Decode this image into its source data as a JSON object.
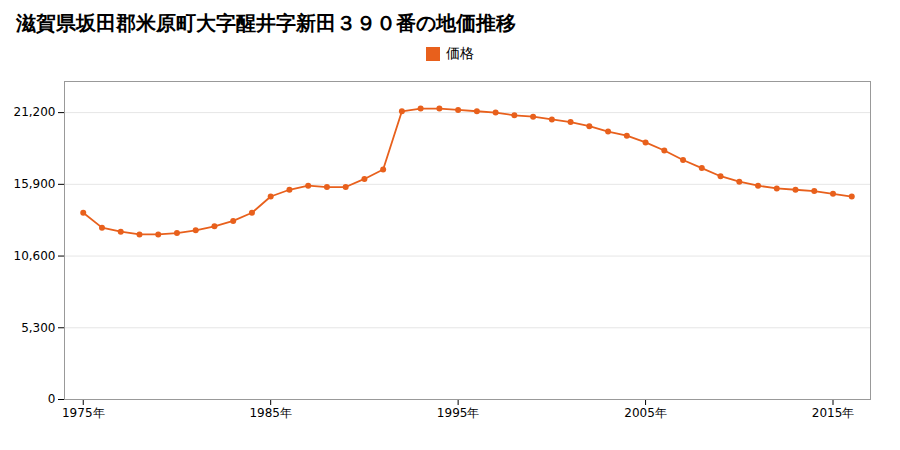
{
  "chart_data": {
    "type": "line",
    "title": "滋賀県坂田郡米原町大字醒井字新田３９０番の地価推移",
    "x": [
      1975,
      1976,
      1977,
      1978,
      1979,
      1980,
      1981,
      1982,
      1983,
      1984,
      1985,
      1986,
      1987,
      1988,
      1989,
      1990,
      1991,
      1992,
      1993,
      1994,
      1995,
      1996,
      1997,
      1998,
      1999,
      2000,
      2001,
      2002,
      2003,
      2004,
      2005,
      2006,
      2007,
      2008,
      2009,
      2010,
      2011,
      2012,
      2013,
      2014,
      2015,
      2016
    ],
    "series": [
      {
        "name": "価格",
        "color": "#e8601c",
        "marker": "circle",
        "values": [
          13800,
          12700,
          12400,
          12200,
          12200,
          12300,
          12500,
          12800,
          13200,
          13800,
          15000,
          15500,
          15800,
          15700,
          15700,
          16300,
          17000,
          21300,
          21500,
          21500,
          21400,
          21300,
          21200,
          21000,
          20900,
          20700,
          20500,
          20200,
          19800,
          19500,
          19000,
          18400,
          17700,
          17100,
          16500,
          16100,
          15800,
          15600,
          15500,
          15400,
          15200,
          15000
        ]
      }
    ],
    "xlim": [
      1974,
      2017
    ],
    "xticks": [
      {
        "value": 1975,
        "label": "1975年"
      },
      {
        "value": 1985,
        "label": "1985年"
      },
      {
        "value": 1995,
        "label": "1995年"
      },
      {
        "value": 2005,
        "label": "2005年"
      },
      {
        "value": 2015,
        "label": "2015年"
      }
    ],
    "ylim": [
      0,
      23500
    ],
    "yticks": [
      0,
      {
        "value": 5300,
        "label": "5,300"
      },
      {
        "value": 10600,
        "label": "10,600"
      },
      {
        "value": 15900,
        "label": "15,900"
      },
      {
        "value": 21200,
        "label": "21,200"
      }
    ],
    "grid": true,
    "legend": "top"
  }
}
